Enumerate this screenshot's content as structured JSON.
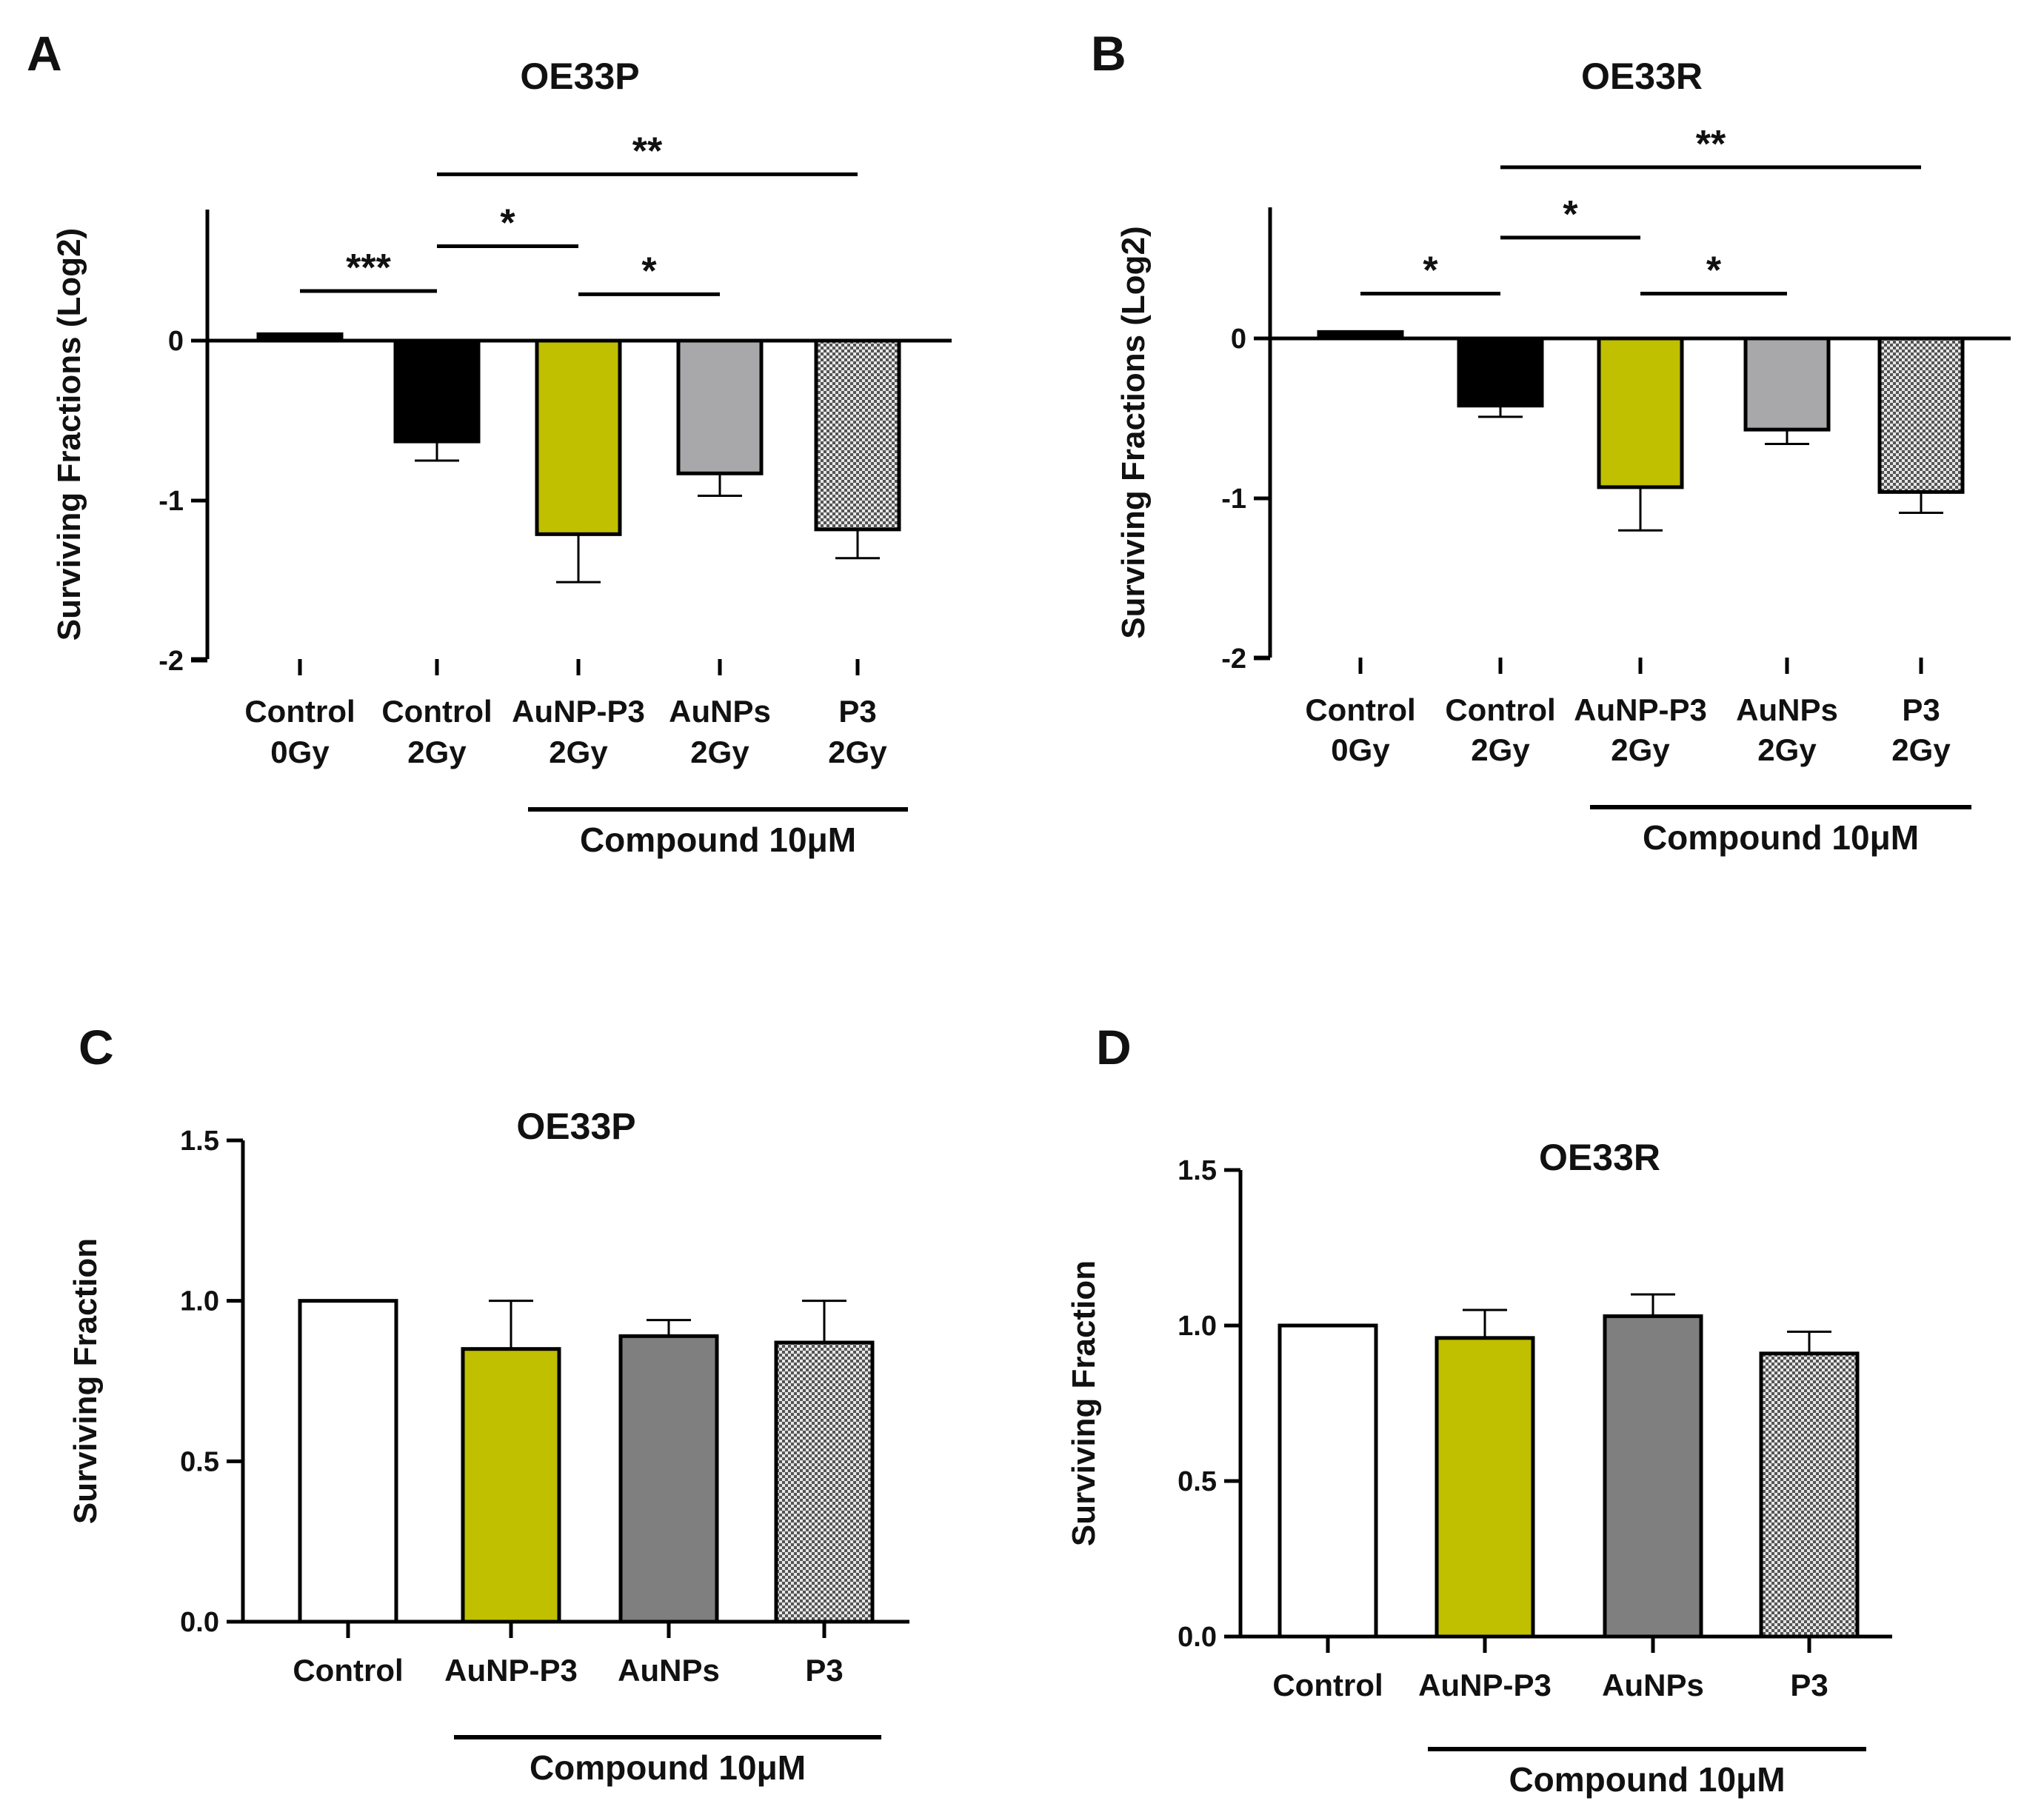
{
  "colors": {
    "black": "#000000",
    "olive": "#c0bf00",
    "light_gray": "#a8a8ab",
    "dark_gray": "#7f7f7f",
    "white": "#ffffff",
    "checker_dark": "#555555",
    "checker_light": "#e6e6e6"
  },
  "chart_data": [
    {
      "panel": "A",
      "type": "bar",
      "title": "OE33P",
      "ylabel": "Surviving Fractions (Log2)",
      "ylim": [
        -2,
        0.85
      ],
      "yticks": [
        "0",
        "-1",
        "-2"
      ],
      "categories": [
        {
          "line1": "Control",
          "line2": "0Gy"
        },
        {
          "line1": "Control",
          "line2": "2Gy"
        },
        {
          "line1": "AuNP-P3",
          "line2": "2Gy"
        },
        {
          "line1": "AuNPs",
          "line2": "2Gy"
        },
        {
          "line1": "P3",
          "line2": "2Gy"
        }
      ],
      "values": [
        0.04,
        -0.63,
        -1.21,
        -0.83,
        -1.18
      ],
      "errors": [
        0.0,
        0.12,
        0.3,
        0.14,
        0.18
      ],
      "fills": [
        "black",
        "black",
        "olive",
        "light_gray",
        "checker"
      ],
      "group_label": "Compound 10μM",
      "group_span": [
        2,
        4
      ],
      "significance": [
        {
          "from": 0,
          "to": 1,
          "y": 0.31,
          "label": "***"
        },
        {
          "from": 1,
          "to": 2,
          "y": 0.59,
          "label": "*"
        },
        {
          "from": 2,
          "to": 3,
          "y": 0.29,
          "label": "*"
        },
        {
          "from": 1,
          "to": 4,
          "y": 1.04,
          "label": "**"
        }
      ]
    },
    {
      "panel": "B",
      "type": "bar",
      "title": "OE33R",
      "ylabel": "Surviving Fractions (Log2)",
      "ylim": [
        -2,
        0.85
      ],
      "yticks": [
        "0",
        "-1",
        "-2"
      ],
      "categories": [
        {
          "line1": "Control",
          "line2": "0Gy"
        },
        {
          "line1": "Control",
          "line2": "2Gy"
        },
        {
          "line1": "AuNP-P3",
          "line2": "2Gy"
        },
        {
          "line1": "AuNPs",
          "line2": "2Gy"
        },
        {
          "line1": "P3",
          "line2": "2Gy"
        }
      ],
      "values": [
        0.04,
        -0.42,
        -0.93,
        -0.57,
        -0.96
      ],
      "errors": [
        0.0,
        0.07,
        0.27,
        0.09,
        0.13
      ],
      "fills": [
        "black",
        "black",
        "olive",
        "light_gray",
        "checker"
      ],
      "group_label": "Compound 10μM",
      "group_span": [
        2,
        4
      ],
      "significance": [
        {
          "from": 0,
          "to": 1,
          "y": 0.28,
          "label": "*"
        },
        {
          "from": 1,
          "to": 2,
          "y": 0.63,
          "label": "*"
        },
        {
          "from": 2,
          "to": 3,
          "y": 0.28,
          "label": "*"
        },
        {
          "from": 1,
          "to": 4,
          "y": 1.07,
          "label": "**"
        }
      ]
    },
    {
      "panel": "C",
      "type": "bar",
      "title": "OE33P",
      "ylabel": "Surviving Fraction",
      "ylim": [
        0,
        1.5
      ],
      "yticks": [
        "0.0",
        "0.5",
        "1.0",
        "1.5"
      ],
      "categories": [
        {
          "line1": "Control",
          "line2": ""
        },
        {
          "line1": "AuNP-P3",
          "line2": ""
        },
        {
          "line1": "AuNPs",
          "line2": ""
        },
        {
          "line1": "P3",
          "line2": ""
        }
      ],
      "values": [
        1.0,
        0.85,
        0.89,
        0.87
      ],
      "errors": [
        0.0,
        0.15,
        0.05,
        0.13
      ],
      "fills": [
        "white",
        "olive",
        "dark_gray",
        "checker"
      ],
      "group_label": "Compound 10μM",
      "group_span": [
        1,
        3
      ],
      "significance": []
    },
    {
      "panel": "D",
      "type": "bar",
      "title": "OE33R",
      "ylabel": "Surviving Fraction",
      "ylim": [
        0,
        1.5
      ],
      "yticks": [
        "0.0",
        "0.5",
        "1.0",
        "1.5"
      ],
      "categories": [
        {
          "line1": "Control",
          "line2": ""
        },
        {
          "line1": "AuNP-P3",
          "line2": ""
        },
        {
          "line1": "AuNPs",
          "line2": ""
        },
        {
          "line1": "P3",
          "line2": ""
        }
      ],
      "values": [
        1.0,
        0.96,
        1.03,
        0.91
      ],
      "errors": [
        0.0,
        0.09,
        0.07,
        0.07
      ],
      "fills": [
        "white",
        "olive",
        "dark_gray",
        "checker"
      ],
      "group_label": "Compound 10μM",
      "group_span": [
        1,
        3
      ],
      "significance": []
    }
  ]
}
